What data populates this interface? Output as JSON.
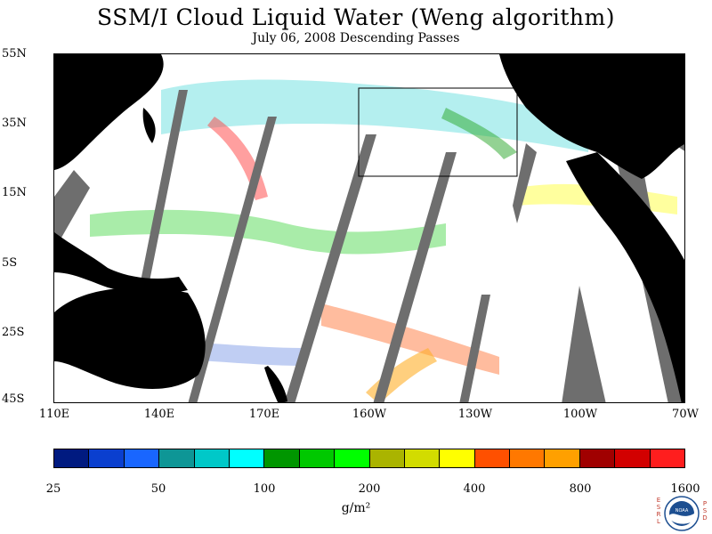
{
  "title": "SSM/I Cloud Liquid Water (Weng algorithm)",
  "subtitle": "July 06, 2008  Descending Passes",
  "lat_labels": [
    "55N",
    "35N",
    "15N",
    "5S",
    "25S",
    "45S"
  ],
  "lon_labels": [
    "110E",
    "140E",
    "170E",
    "160W",
    "130W",
    "100W",
    "70W"
  ],
  "colorbar": {
    "tick_labels": [
      "25",
      "50",
      "100",
      "200",
      "400",
      "800",
      "1600"
    ],
    "units": "g/m²",
    "colors": [
      "#001a80",
      "#0a3fcf",
      "#1966ff",
      "#0e9696",
      "#00c8c8",
      "#00ffff",
      "#009600",
      "#00c800",
      "#00ff00",
      "#aab400",
      "#d2dc00",
      "#ffff00",
      "#ff5000",
      "#ff7800",
      "#ffa000",
      "#a00000",
      "#d20000",
      "#ff1e1e"
    ]
  },
  "map": {
    "ocean_color": "#ffffff",
    "land_color": "#000000",
    "no_data_color": "#6e6e6e"
  },
  "logo": {
    "text": "NOAA",
    "left_letters": [
      "E",
      "S",
      "R",
      "L"
    ],
    "right_letters": [
      "P",
      "S",
      "D"
    ]
  }
}
